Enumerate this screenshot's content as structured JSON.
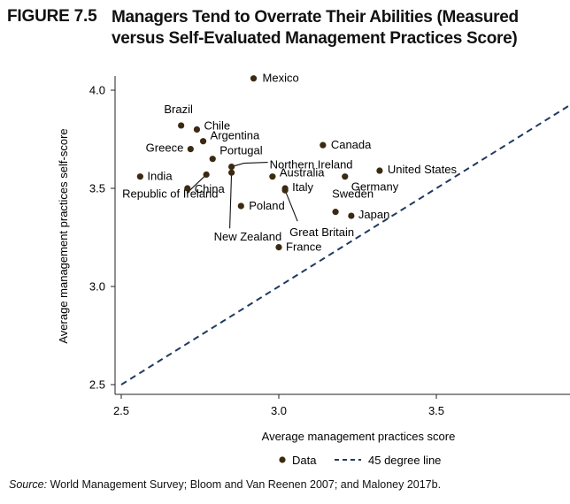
{
  "figure": {
    "number": "FIGURE 7.5",
    "title": "Managers Tend to Overrate Their Abilities (Measured versus Self-Evaluated Management Practices Score)",
    "source_label": "Source:",
    "source_text": " World Management Survey; Bloom and Van Reenen 2007; and Maloney 2017b."
  },
  "chart_data": {
    "type": "scatter",
    "title": "Managers Tend to Overrate Their Abilities (Measured versus Self-Evaluated Management Practices Score)",
    "xlabel": "Average management practices score",
    "ylabel": "Average management practices self-score",
    "xlim": [
      2.45,
      3.92
    ],
    "ylim": [
      2.45,
      4.07
    ],
    "xticks": [
      2.5,
      3.0,
      3.5
    ],
    "yticks": [
      2.5,
      3.0,
      3.5,
      4.0
    ],
    "xtick_labels": [
      "2.5",
      "3.0",
      "3.5"
    ],
    "ytick_labels": [
      "2.5",
      "3.0",
      "3.5",
      "4.0"
    ],
    "grid": false,
    "legend": [
      "Data",
      "45 degree line"
    ],
    "series": [
      {
        "name": "Data",
        "color": "#3b2a12",
        "points": [
          {
            "label": "Mexico",
            "x": 2.92,
            "y": 4.06
          },
          {
            "label": "Brazil",
            "x": 2.69,
            "y": 3.82
          },
          {
            "label": "Chile",
            "x": 2.74,
            "y": 3.8
          },
          {
            "label": "Argentina",
            "x": 2.76,
            "y": 3.74
          },
          {
            "label": "Greece",
            "x": 2.72,
            "y": 3.7
          },
          {
            "label": "Portugal",
            "x": 2.79,
            "y": 3.65
          },
          {
            "label": "Canada",
            "x": 3.14,
            "y": 3.72
          },
          {
            "label": "Northern Ireland",
            "x": 2.85,
            "y": 3.61
          },
          {
            "label": "United States",
            "x": 3.32,
            "y": 3.59
          },
          {
            "label": "India",
            "x": 2.56,
            "y": 3.56
          },
          {
            "label": "Republic of Ireland",
            "x": 2.77,
            "y": 3.57
          },
          {
            "label": "Australia",
            "x": 2.98,
            "y": 3.56
          },
          {
            "label": "Germany",
            "x": 3.21,
            "y": 3.56
          },
          {
            "label": "New Zealand",
            "x": 2.85,
            "y": 3.58
          },
          {
            "label": "China",
            "x": 2.71,
            "y": 3.5
          },
          {
            "label": "Italy",
            "x": 3.02,
            "y": 3.5
          },
          {
            "label": "Great Britain",
            "x": 3.02,
            "y": 3.49
          },
          {
            "label": "Poland",
            "x": 2.88,
            "y": 3.41
          },
          {
            "label": "Sweden",
            "x": 3.18,
            "y": 3.38
          },
          {
            "label": "Japan",
            "x": 3.23,
            "y": 3.36
          },
          {
            "label": "France",
            "x": 3.0,
            "y": 3.2
          }
        ]
      },
      {
        "name": "45 degree line",
        "color": "#1f3a5f",
        "style": "dashed",
        "points": [
          {
            "x": 2.5,
            "y": 2.5
          },
          {
            "x": 3.92,
            "y": 3.92
          }
        ]
      }
    ]
  }
}
